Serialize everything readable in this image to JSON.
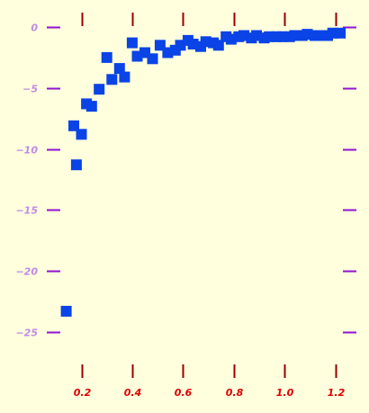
{
  "chart_data": {
    "type": "scatter",
    "title": "",
    "xlabel": "",
    "ylabel": "",
    "xlim": [
      0.1,
      1.25
    ],
    "ylim": [
      -26,
      0
    ],
    "xticks": [
      0.2,
      0.4,
      0.6,
      0.8,
      1.0,
      1.2
    ],
    "xtick_labels": [
      "0.2",
      "0.4",
      "0.6",
      "0.8",
      "1.0",
      "1.2"
    ],
    "yticks": [
      0,
      -5,
      -10,
      -15,
      -20,
      -25
    ],
    "ytick_labels": [
      "0",
      "−5",
      "−10",
      "−15",
      "−20",
      "−25"
    ],
    "grid": false,
    "legend": "none",
    "colors": {
      "background": "#ffffdd",
      "marker": "#0a43e6",
      "ytick": "#8f12d2",
      "ytick_label": "#c08ae6",
      "xtick": "#990000",
      "xtick_label": "#dd0000"
    },
    "marker": "square",
    "series": [
      {
        "x": [
          0.14,
          0.17,
          0.18,
          0.2,
          0.22,
          0.24,
          0.27,
          0.3,
          0.32,
          0.35,
          0.37,
          0.4,
          0.42,
          0.45,
          0.48,
          0.51,
          0.54,
          0.57,
          0.59,
          0.62,
          0.64,
          0.67,
          0.69,
          0.72,
          0.74,
          0.77,
          0.79,
          0.82,
          0.84,
          0.87,
          0.89,
          0.92,
          0.94,
          0.97,
          0.99,
          1.02,
          1.04,
          1.07,
          1.09,
          1.12,
          1.14,
          1.17,
          1.19,
          1.22
        ],
        "y": [
          -23.3,
          -8.1,
          -11.3,
          -8.8,
          -6.3,
          -6.5,
          -5.1,
          -2.5,
          -4.3,
          -3.4,
          -4.1,
          -1.3,
          -2.4,
          -2.1,
          -2.6,
          -1.5,
          -2.1,
          -1.9,
          -1.5,
          -1.1,
          -1.4,
          -1.6,
          -1.2,
          -1.3,
          -1.5,
          -0.8,
          -1.0,
          -0.8,
          -0.7,
          -0.9,
          -0.7,
          -0.9,
          -0.8,
          -0.8,
          -0.8,
          -0.8,
          -0.7,
          -0.7,
          -0.6,
          -0.7,
          -0.7,
          -0.7,
          -0.5,
          -0.5
        ]
      }
    ]
  }
}
